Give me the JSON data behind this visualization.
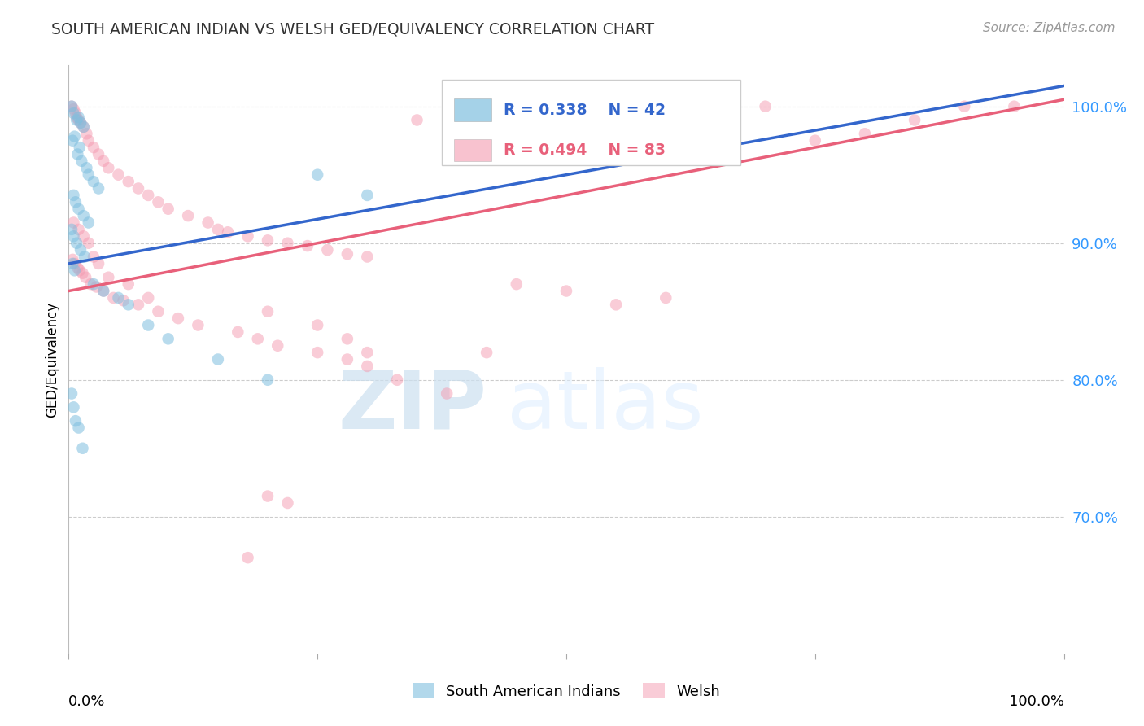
{
  "title": "SOUTH AMERICAN INDIAN VS WELSH GED/EQUIVALENCY CORRELATION CHART",
  "source": "Source: ZipAtlas.com",
  "ylabel": "GED/Equivalency",
  "blue_R": 0.338,
  "blue_N": 42,
  "pink_R": 0.494,
  "pink_N": 83,
  "legend_blue": "South American Indians",
  "legend_pink": "Welsh",
  "blue_color": "#7fbfdf",
  "pink_color": "#f49ab0",
  "blue_line_color": "#3366cc",
  "pink_line_color": "#e8607a",
  "label_color": "#3366cc",
  "ytick_color": "#3399ff",
  "grid_color": "#cccccc",
  "xlim": [
    0.0,
    100.0
  ],
  "ylim": [
    60.0,
    103.0
  ],
  "blue_line_x0": 0.0,
  "blue_line_y0": 88.5,
  "blue_line_x1": 100.0,
  "blue_line_y1": 101.5,
  "pink_line_x0": 0.0,
  "pink_line_y0": 86.5,
  "pink_line_x1": 100.0,
  "pink_line_y1": 100.5,
  "blue_x": [
    0.3,
    0.5,
    0.8,
    1.0,
    1.2,
    1.5,
    0.4,
    0.6,
    0.9,
    1.1,
    1.3,
    1.8,
    2.0,
    2.5,
    3.0,
    0.5,
    0.7,
    1.0,
    1.5,
    2.0,
    0.3,
    0.5,
    0.8,
    1.2,
    1.6,
    0.4,
    0.6,
    2.5,
    3.5,
    5.0,
    6.0,
    8.0,
    10.0,
    15.0,
    20.0,
    0.3,
    0.5,
    0.7,
    1.0,
    1.4,
    25.0,
    30.0
  ],
  "blue_y": [
    100.0,
    99.5,
    99.0,
    99.2,
    98.8,
    98.5,
    97.5,
    97.8,
    96.5,
    97.0,
    96.0,
    95.5,
    95.0,
    94.5,
    94.0,
    93.5,
    93.0,
    92.5,
    92.0,
    91.5,
    91.0,
    90.5,
    90.0,
    89.5,
    89.0,
    88.5,
    88.0,
    87.0,
    86.5,
    86.0,
    85.5,
    84.0,
    83.0,
    81.5,
    80.0,
    79.0,
    78.0,
    77.0,
    76.5,
    75.0,
    95.0,
    93.5
  ],
  "pink_x": [
    0.3,
    0.5,
    0.7,
    0.8,
    1.0,
    1.2,
    1.5,
    1.8,
    2.0,
    2.5,
    3.0,
    3.5,
    4.0,
    5.0,
    6.0,
    7.0,
    8.0,
    9.0,
    10.0,
    12.0,
    14.0,
    15.0,
    16.0,
    18.0,
    20.0,
    22.0,
    24.0,
    26.0,
    28.0,
    30.0,
    0.4,
    0.6,
    0.9,
    1.1,
    1.4,
    1.7,
    2.2,
    2.8,
    3.5,
    4.5,
    5.5,
    7.0,
    9.0,
    11.0,
    13.0,
    17.0,
    19.0,
    21.0,
    25.0,
    28.0,
    35.0,
    40.0,
    45.0,
    50.0,
    55.0,
    60.0,
    65.0,
    70.0,
    75.0,
    80.0,
    85.0,
    90.0,
    95.0,
    0.5,
    1.0,
    1.5,
    2.0,
    2.5,
    3.0,
    4.0,
    6.0,
    8.0,
    20.0,
    25.0,
    28.0,
    30.0,
    30.0,
    33.0,
    38.0,
    42.0,
    20.0,
    22.0,
    18.0
  ],
  "pink_y": [
    100.0,
    99.8,
    99.5,
    99.2,
    99.0,
    98.8,
    98.5,
    98.0,
    97.5,
    97.0,
    96.5,
    96.0,
    95.5,
    95.0,
    94.5,
    94.0,
    93.5,
    93.0,
    92.5,
    92.0,
    91.5,
    91.0,
    90.8,
    90.5,
    90.2,
    90.0,
    89.8,
    89.5,
    89.2,
    89.0,
    88.8,
    88.5,
    88.2,
    88.0,
    87.8,
    87.5,
    87.0,
    86.8,
    86.5,
    86.0,
    85.8,
    85.5,
    85.0,
    84.5,
    84.0,
    83.5,
    83.0,
    82.5,
    82.0,
    81.5,
    99.0,
    98.5,
    87.0,
    86.5,
    85.5,
    86.0,
    99.5,
    100.0,
    97.5,
    98.0,
    99.0,
    100.0,
    100.0,
    91.5,
    91.0,
    90.5,
    90.0,
    89.0,
    88.5,
    87.5,
    87.0,
    86.0,
    85.0,
    84.0,
    83.0,
    82.0,
    81.0,
    80.0,
    79.0,
    82.0,
    71.5,
    71.0,
    67.0
  ]
}
